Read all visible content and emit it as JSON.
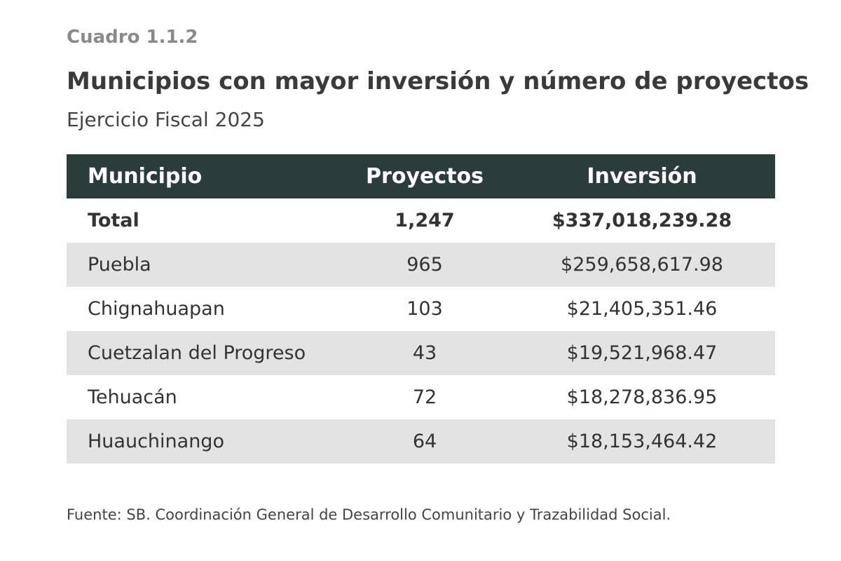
{
  "header": {
    "label": "Cuadro 1.1.2",
    "title": "Municipios con mayor inversión y número de proyectos",
    "subtitle": "Ejercicio Fiscal 2025"
  },
  "table": {
    "columns": [
      "Municipio",
      "Proyectos",
      "Inversión"
    ],
    "rows": [
      [
        "Total",
        "1,247",
        "$337,018,239.28"
      ],
      [
        "Puebla",
        "965",
        "$259,658,617.98"
      ],
      [
        "Chignahuapan",
        "103",
        "$21,405,351.46"
      ],
      [
        "Cuetzalan del Progreso",
        "43",
        "$19,521,968.47"
      ],
      [
        "Tehuacán",
        "72",
        "$18,278,836.95"
      ],
      [
        "Huauchinango",
        "64",
        "$18,153,464.42"
      ]
    ]
  },
  "footer": {
    "source": "Fuente: SB. Coordinación General de Desarrollo Comunitario y Trazabilidad Social."
  }
}
